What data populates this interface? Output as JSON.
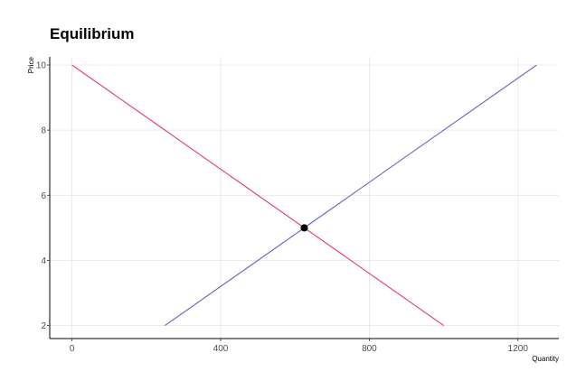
{
  "chart_data": {
    "type": "line",
    "title": "Equilibrium",
    "xlabel": "Quantity",
    "ylabel": "Price",
    "xlim": [
      -60,
      1310
    ],
    "ylim": [
      1.6,
      10.25
    ],
    "x_ticks": [
      0,
      400,
      800,
      1200
    ],
    "y_ticks": [
      2,
      4,
      6,
      8,
      10
    ],
    "grid": true,
    "series": [
      {
        "color": "#e8336b",
        "points": [
          [
            0,
            10
          ],
          [
            1000,
            2
          ]
        ]
      },
      {
        "color": "#6a5acd",
        "points": [
          [
            250,
            2
          ],
          [
            1250,
            10
          ]
        ]
      }
    ],
    "equilibrium_point": {
      "x": 625,
      "y": 5,
      "color": "#000000"
    }
  }
}
